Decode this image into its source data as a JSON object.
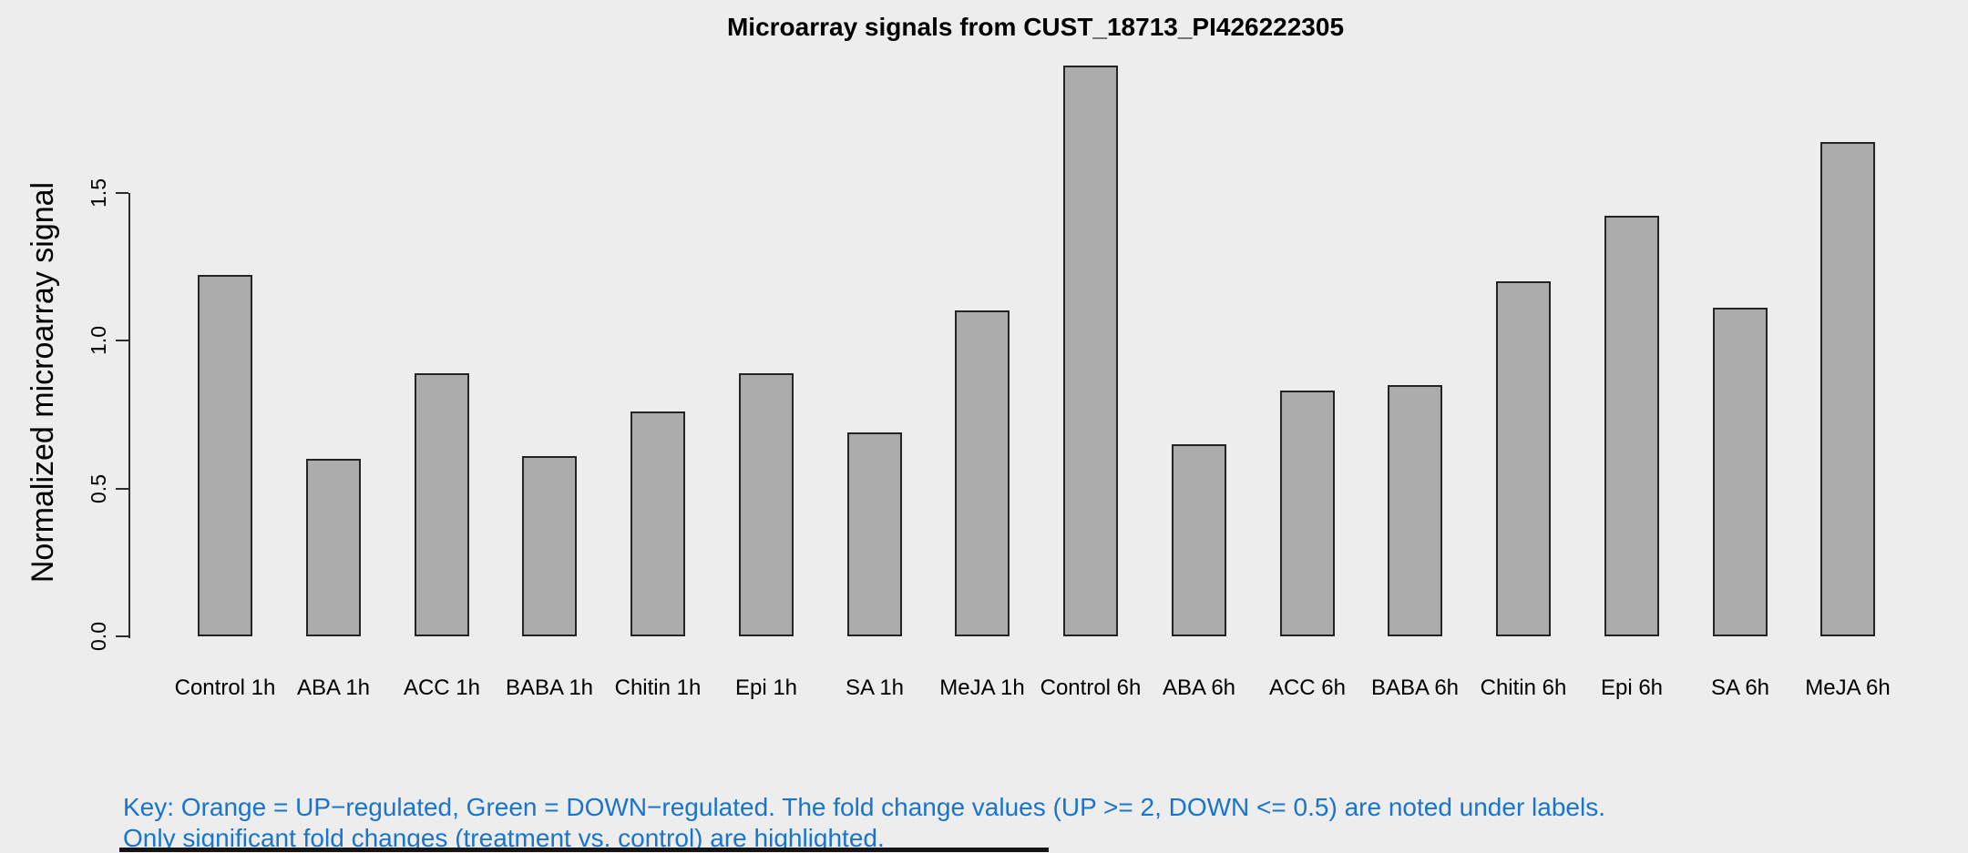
{
  "page": {
    "background": "#EDEDED"
  },
  "chart_data": {
    "type": "bar",
    "title": "Microarray signals from CUST_18713_PI426222305",
    "ylabel": "Normalized microarray signal",
    "xlabel": "",
    "categories": [
      "Control 1h",
      "ABA 1h",
      "ACC 1h",
      "BABA 1h",
      "Chitin 1h",
      "Epi 1h",
      "SA 1h",
      "MeJA 1h",
      "Control 6h",
      "ABA 6h",
      "ACC 6h",
      "BABA 6h",
      "Chitin 6h",
      "Epi 6h",
      "SA 6h",
      "MeJA 6h"
    ],
    "values": [
      1.22,
      0.6,
      0.89,
      0.61,
      0.76,
      0.89,
      0.69,
      1.1,
      1.93,
      0.65,
      0.83,
      0.85,
      1.2,
      1.42,
      1.11,
      1.67
    ],
    "ylim": [
      0,
      1.95
    ],
    "yticks": {
      "labels": [
        "0.0",
        "0.5",
        "1.0",
        "1.5"
      ],
      "values": [
        0,
        0.5,
        1.0,
        1.5
      ]
    },
    "grid": false,
    "legend": "none",
    "bar_fill": "#ACACAC",
    "bar_border": "#242424",
    "axis_color": "#2b2b2b"
  },
  "footer": {
    "color": "#1874CD",
    "line1": "Key: Orange = UP−regulated, Green = DOWN−regulated. The fold change values (UP >= 2, DOWN <= 0.5) are noted under labels.",
    "line2": "Only significant fold changes (treatment vs. control) are highlighted."
  }
}
